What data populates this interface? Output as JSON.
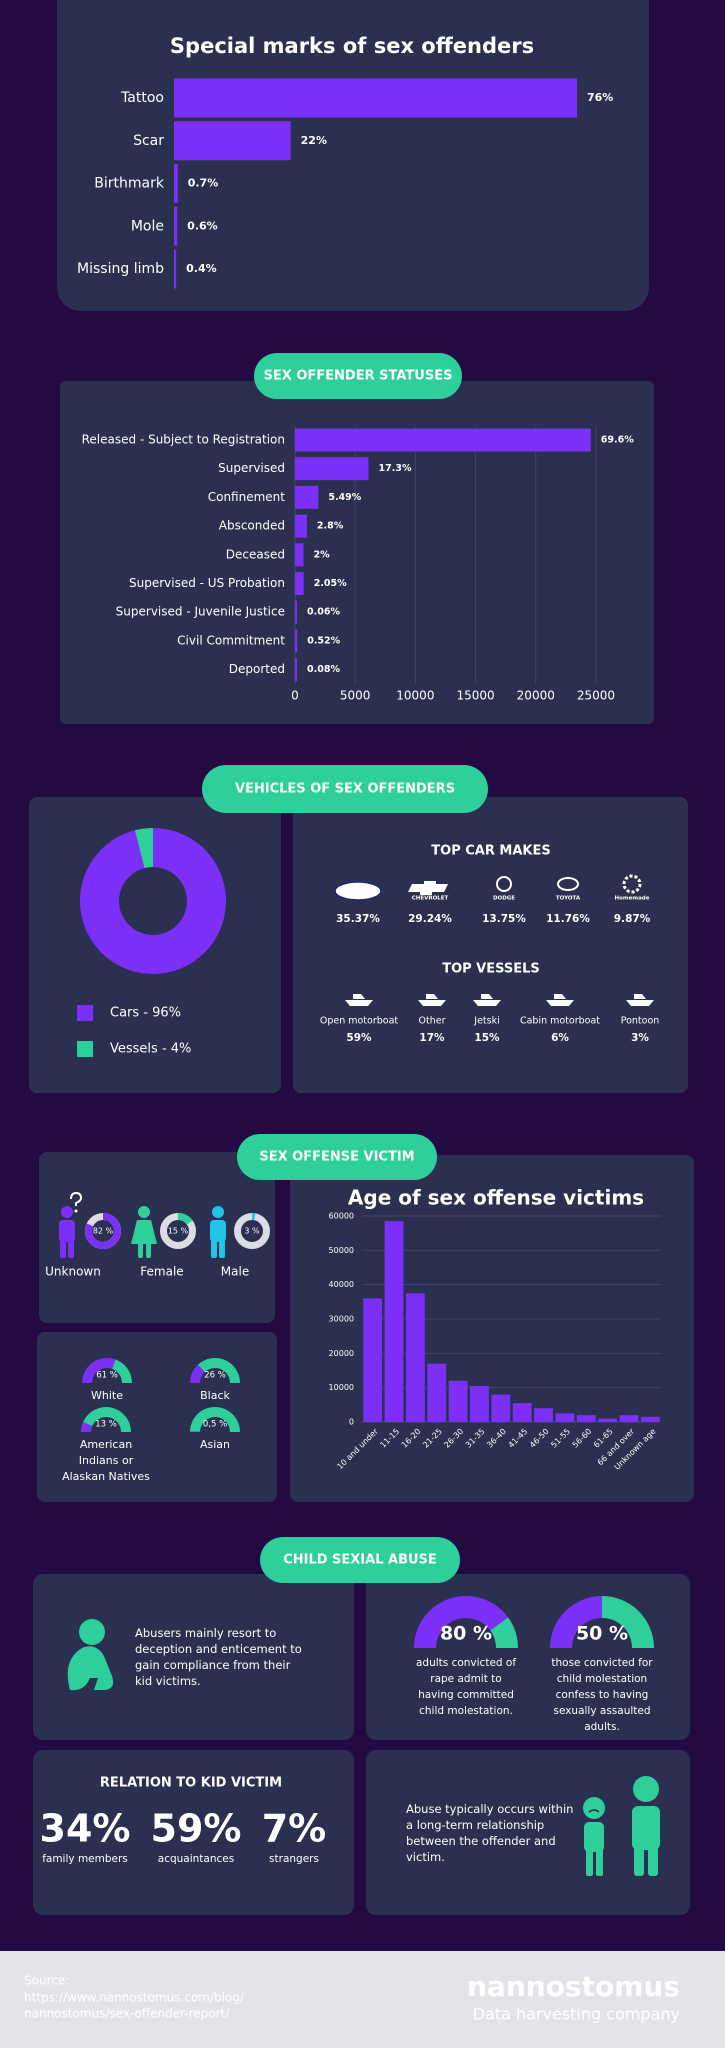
{
  "chart_data": [
    {
      "type": "hbar",
      "title": "Special marks of sex offenders",
      "categories": [
        "Tattoo",
        "Scar",
        "Birthmark",
        "Mole",
        "Missing limb"
      ],
      "values": [
        76,
        22,
        0.7,
        0.6,
        0.4
      ],
      "value_labels": [
        "76%",
        "22%",
        "0.7%",
        "0.6%",
        "0.4%"
      ],
      "color": "#7b2ff7"
    },
    {
      "type": "hbar",
      "title": "SEX OFFENDER STATUSES",
      "categories": [
        "Released - Subject to Registration",
        "Supervised",
        "Confinement",
        "Absconded",
        "Deceased",
        "Supervised - US Probation",
        "Supervised - Juvenile Justice",
        "Civil Commitment",
        "Deported"
      ],
      "values": [
        24570,
        6107,
        1938,
        988,
        706,
        724,
        21,
        184,
        28
      ],
      "share_labels": [
        "69.6%",
        "17.3%",
        "5.49%",
        "2.8%",
        "2%",
        "2.05%",
        "0.06%",
        "0.52%",
        "0.08%"
      ],
      "xlim": [
        0,
        26000
      ],
      "xticks": [
        0,
        5000,
        10000,
        15000,
        20000,
        25000
      ],
      "grid": true,
      "color": "#7b2ff7"
    },
    {
      "type": "donut",
      "title": "VEHICLES OF SEX OFFENDERS",
      "categories": [
        "Cars",
        "Vessels"
      ],
      "values": [
        96,
        4
      ],
      "legend_labels": [
        "Cars - 96%",
        "Vessels - 4%"
      ],
      "colors": [
        "#7b2ff7",
        "#2fcf9b"
      ]
    },
    {
      "type": "column",
      "title": "Age of sex offense victims",
      "categories": [
        "10 and under",
        "11-15",
        "16-20",
        "21-25",
        "26-30",
        "31-35",
        "36-40",
        "41-45",
        "46-50",
        "51-55",
        "56-60",
        "61-65",
        "66 and over",
        "Unknown age"
      ],
      "values": [
        36000,
        58500,
        37500,
        17000,
        12000,
        10500,
        8000,
        5500,
        4000,
        2500,
        2000,
        1000,
        2000,
        1500
      ],
      "ylim": [
        0,
        60000
      ],
      "yticks": [
        0,
        10000,
        20000,
        30000,
        40000,
        50000,
        60000
      ],
      "grid": true,
      "color": "#7b2ff7"
    },
    {
      "type": "ring",
      "categories": [
        "Unknown",
        "Female",
        "Male"
      ],
      "values": [
        82,
        15,
        3
      ],
      "value_labels": [
        "82 %",
        "15 %",
        "3 %"
      ],
      "colors": [
        "#7b2ff7",
        "#2fcf9b",
        "#20c4e6"
      ]
    },
    {
      "type": "gauge",
      "categories": [
        "White",
        "Black",
        "American Indians or Alaskan Natives",
        "Asian"
      ],
      "values": [
        61,
        26,
        13,
        0.5
      ],
      "value_labels": [
        "61 %",
        "26 %",
        "13 %",
        "0,5 %"
      ],
      "colors": [
        "#7b2ff7",
        "#2fcf9b"
      ]
    },
    {
      "type": "gauge",
      "categories": [
        "adults convicted of rape admit to having committed child molestation.",
        "those convicted for child molestation confess to having sexually assaulted adults."
      ],
      "values": [
        80,
        50
      ],
      "value_labels": [
        "80 %",
        "50 %"
      ],
      "colors": [
        "#7b2ff7",
        "#2fcf9b"
      ]
    }
  ],
  "car_makes": {
    "title": "TOP CAR MAKES",
    "items": [
      {
        "logo": "Ford",
        "share": "35.37%"
      },
      {
        "logo": "CHEVROLET",
        "share": "29.24%"
      },
      {
        "logo": "DODGE",
        "share": "13.75%"
      },
      {
        "logo": "TOYOTA",
        "share": "11.76%"
      },
      {
        "logo": "Homemade",
        "share": "9.87%"
      }
    ]
  },
  "vessels": {
    "title": "TOP VESSELS",
    "items": [
      {
        "name": "Open motorboat",
        "share": "59%"
      },
      {
        "name": "Other",
        "share": "17%"
      },
      {
        "name": "Jetski",
        "share": "15%"
      },
      {
        "name": "Cabin motorboat",
        "share": "6%"
      },
      {
        "name": "Pontoon",
        "share": "3%"
      }
    ]
  },
  "victim_heading": "SEX OFFENSE VICTIM",
  "child_abuse": {
    "heading": "CHILD SEXIAL ABUSE",
    "intro": "Abusers mainly resort to deception and enticement to gain compliance from their kid victims.",
    "relation": {
      "title": "RELATION TO KID VICTIM",
      "items": [
        {
          "share": "34%",
          "label": "family members"
        },
        {
          "share": "59%",
          "label": "acquaintances"
        },
        {
          "share": "7%",
          "label": "strangers"
        }
      ]
    },
    "note": "Abuse typically occurs within a long-term relationship between the offender and victim."
  },
  "footer": {
    "source_label": "Source:",
    "source_url": [
      "https://www.nannostomus.com/blog/",
      "nannostomus/sex-offender-report/"
    ],
    "brand": "nannostomus",
    "tagline": "Data harvesting company"
  }
}
